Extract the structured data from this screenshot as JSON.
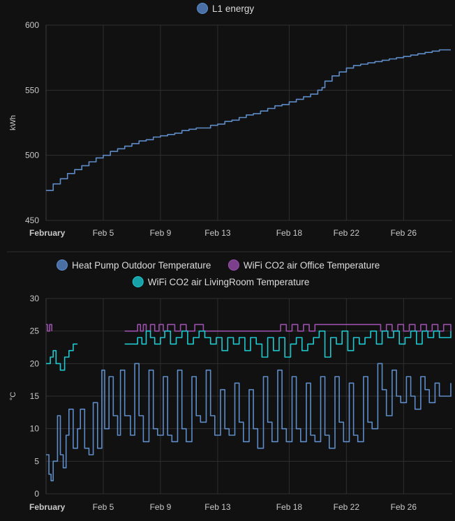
{
  "chart_data": [
    {
      "type": "line",
      "ylabel": "kWh",
      "ylim": [
        450,
        600
      ],
      "yticks": [
        450,
        500,
        550,
        600
      ],
      "x_ticks": [
        "February",
        "Feb 5",
        "Feb 9",
        "Feb 13",
        "Feb 18",
        "Feb 22",
        "Feb 26"
      ],
      "x_tick_days": [
        1,
        5,
        9,
        13,
        18,
        22,
        26
      ],
      "legend_position": "top-center",
      "grid": true,
      "series": [
        {
          "name": "L1 energy",
          "color": "#4a6fa5",
          "line_color": "#5d8cc8",
          "x": [
            1,
            1.5,
            2,
            2.5,
            3,
            3.5,
            4,
            4.5,
            5,
            5.5,
            6,
            6.5,
            7,
            7.5,
            8,
            8.5,
            9,
            9.5,
            10,
            10.5,
            11,
            11.5,
            12,
            12.5,
            13,
            13.5,
            14,
            14.5,
            15,
            15.5,
            16,
            16.5,
            17,
            17.5,
            18,
            18.5,
            19,
            19.5,
            20,
            20.3,
            20.5,
            21,
            21.5,
            22,
            22.5,
            23,
            23.5,
            24,
            24.5,
            25,
            25.5,
            26,
            26.5,
            27,
            27.5,
            28,
            28.5,
            29,
            29.3
          ],
          "values": [
            473,
            478,
            482,
            486,
            489,
            492,
            495,
            498,
            500,
            503,
            505,
            507,
            509,
            511,
            512,
            514,
            515,
            516,
            517,
            519,
            520,
            521,
            521,
            523,
            524,
            526,
            527,
            529,
            531,
            532,
            534,
            536,
            538,
            539,
            541,
            543,
            545,
            547,
            550,
            552,
            557,
            561,
            564,
            567,
            569,
            570,
            571,
            572,
            573,
            574,
            575,
            576,
            577,
            578,
            579,
            580,
            581,
            581,
            581
          ]
        }
      ]
    },
    {
      "type": "line",
      "ylabel": "°C",
      "ylim": [
        0,
        30
      ],
      "yticks": [
        0,
        5,
        10,
        15,
        20,
        25,
        30
      ],
      "x_ticks": [
        "February",
        "Feb 5",
        "Feb 9",
        "Feb 13",
        "Feb 18",
        "Feb 22",
        "Feb 26"
      ],
      "x_tick_days": [
        1,
        5,
        9,
        13,
        18,
        22,
        26
      ],
      "legend_position": "top-center",
      "grid": true,
      "series": [
        {
          "name": "Heat Pump Outdoor Temperature",
          "color": "#4a6fa5",
          "line_color": "#5d8cc8",
          "x": [
            1,
            1.2,
            1.35,
            1.5,
            1.8,
            2.0,
            2.2,
            2.4,
            2.6,
            2.9,
            3.2,
            3.4,
            3.7,
            4.0,
            4.3,
            4.6,
            4.9,
            5.1,
            5.4,
            5.7,
            6.0,
            6.2,
            6.5,
            6.9,
            7.2,
            7.5,
            7.8,
            8.2,
            8.5,
            8.8,
            9.2,
            9.5,
            9.8,
            10.2,
            10.5,
            10.8,
            11.2,
            11.5,
            11.8,
            12.2,
            12.5,
            12.8,
            13.2,
            13.5,
            13.8,
            14.2,
            14.5,
            14.8,
            15.2,
            15.5,
            15.8,
            16.2,
            16.5,
            16.8,
            17.2,
            17.5,
            17.8,
            18.2,
            18.5,
            18.8,
            19.2,
            19.5,
            19.8,
            20.2,
            20.5,
            20.8,
            21.2,
            21.5,
            21.8,
            22.2,
            22.5,
            22.8,
            23.2,
            23.5,
            23.8,
            24.2,
            24.5,
            24.8,
            25.2,
            25.5,
            25.8,
            26.2,
            26.5,
            26.8,
            27.2,
            27.5,
            27.8,
            28.2,
            28.5,
            28.8,
            29.3
          ],
          "values": [
            6,
            3,
            2,
            5,
            12,
            6,
            4,
            9,
            13,
            7,
            10,
            13,
            7,
            6,
            14,
            7,
            19,
            10,
            18,
            12,
            9,
            19,
            12,
            9,
            20,
            12,
            8,
            19,
            10,
            9,
            18,
            9,
            8,
            19,
            10,
            8,
            18,
            12,
            11,
            19,
            12,
            9,
            16,
            10,
            9,
            17,
            11,
            8,
            16,
            10,
            7,
            18,
            11,
            8,
            19,
            10,
            8,
            18,
            10,
            8,
            17,
            9,
            8,
            18,
            9,
            7,
            18,
            11,
            8,
            17,
            9,
            8,
            18,
            11,
            10,
            20,
            16,
            12,
            19,
            15,
            14,
            18,
            15,
            13,
            18,
            16,
            14,
            17,
            15,
            15,
            17
          ]
        },
        {
          "name": "WiFi CO2 air Office Temperature",
          "color": "#7b3f8c",
          "line_color": "#9b50ad",
          "x": [
            1,
            1.1,
            1.25,
            1.4,
            6.5,
            7.4,
            7.6,
            7.8,
            8.0,
            8.3,
            8.6,
            8.9,
            9.2,
            9.5,
            10.0,
            10.4,
            10.8,
            11.4,
            12.0,
            12.6,
            13.2,
            13.8,
            14.4,
            15.0,
            15.6,
            16.2,
            16.8,
            17.4,
            17.8,
            18.2,
            18.6,
            19.0,
            19.4,
            19.8,
            20.2,
            20.8,
            21.4,
            22.0,
            22.6,
            23.2,
            23.8,
            24.4,
            24.8,
            25.2,
            25.6,
            26.0,
            26.4,
            26.8,
            27.2,
            27.6,
            28.0,
            28.4,
            28.8,
            29.3
          ],
          "values": [
            26,
            25,
            26,
            25,
            25,
            26,
            25,
            26,
            25,
            26,
            25,
            26,
            25,
            26,
            25,
            26,
            25,
            26,
            25,
            25,
            25,
            25,
            25,
            25,
            25,
            25,
            25,
            26,
            25,
            26,
            25,
            26,
            25,
            26,
            26,
            26,
            26,
            26,
            26,
            26,
            26,
            25,
            26,
            25,
            26,
            25,
            26,
            25,
            26,
            25,
            26,
            25,
            26,
            25
          ]
        },
        {
          "name": "WiFi CO2 air LivingRoom Temperature",
          "color": "#17a2a8",
          "line_color": "#1ec8cf",
          "x": [
            1,
            1.3,
            1.5,
            1.7,
            2.0,
            2.3,
            2.6,
            2.9,
            3.2,
            6.5,
            7.4,
            7.7,
            8.0,
            8.3,
            8.6,
            9.0,
            9.3,
            9.7,
            10.1,
            10.5,
            10.9,
            11.3,
            11.7,
            12.1,
            12.5,
            12.9,
            13.3,
            13.7,
            14.1,
            14.5,
            14.9,
            15.3,
            15.7,
            16.1,
            16.5,
            16.9,
            17.3,
            17.7,
            18.1,
            18.5,
            18.9,
            19.3,
            19.7,
            20.1,
            20.5,
            20.9,
            21.3,
            21.7,
            22.1,
            22.5,
            22.9,
            23.3,
            23.7,
            24.1,
            24.5,
            24.9,
            25.3,
            25.7,
            26.1,
            26.5,
            26.9,
            27.3,
            27.7,
            28.1,
            28.5,
            28.9,
            29.3
          ],
          "values": [
            20,
            21,
            22,
            20,
            19,
            21,
            22,
            23,
            23,
            23,
            24,
            23,
            25,
            24,
            23,
            24,
            25,
            23,
            24,
            25,
            23,
            24,
            25,
            24,
            23,
            24,
            22,
            24,
            23,
            24,
            22,
            24,
            23,
            21,
            24,
            22,
            24,
            21,
            23,
            24,
            22,
            23,
            24,
            25,
            21,
            24,
            23,
            25,
            22,
            24,
            23,
            24,
            25,
            23,
            25,
            24,
            25,
            23,
            24,
            25,
            23,
            25,
            24,
            25,
            24,
            24,
            25
          ]
        }
      ]
    }
  ]
}
